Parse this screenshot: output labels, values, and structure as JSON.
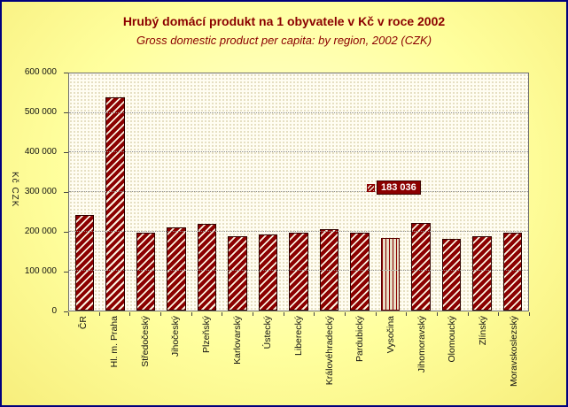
{
  "chart_data": {
    "type": "bar",
    "title": "Hrubý domácí produkt na 1 obyvatele v Kč v roce 2002",
    "subtitle": "Gross domestic product per capita: by region, 2002 (CZK)",
    "ylabel": "Kč  CZK",
    "categories": [
      "ČR",
      "Hl. m. Praha",
      "Středočeský",
      "Jihočeský",
      "Plzeňský",
      "Karlovarský",
      "Ústecký",
      "Liberecký",
      "Královéhradecký",
      "Pardubický",
      "Vysočina",
      "Jihomoravský",
      "Olomoucký",
      "Zlínský",
      "Moravskoslezský"
    ],
    "values": [
      242000,
      540000,
      196000,
      210000,
      220000,
      187000,
      193000,
      196000,
      207000,
      198000,
      183036,
      222000,
      182000,
      188000,
      198000
    ],
    "ylim": [
      0,
      600000
    ],
    "ytick_labels": [
      "0",
      "100 000",
      "200 000",
      "300 000",
      "400 000",
      "500 000",
      "600 000"
    ],
    "grid": "horizontal-dotted",
    "legend": "none",
    "highlight_category": "Vysočina",
    "annotation": {
      "text": "183 036",
      "target": "Vysočina"
    },
    "colors": {
      "bar": "#8B0000",
      "bar_hatch": "#FAF2E0",
      "highlight_bar_bg": "#E8DFC6",
      "title": "#8B0000",
      "page_background": "#FFFF99",
      "plot_background": "#FFFDF2",
      "page_border": "#00007D",
      "annotation_bg": "#8B0000",
      "annotation_text": "#FFFFFF"
    }
  }
}
